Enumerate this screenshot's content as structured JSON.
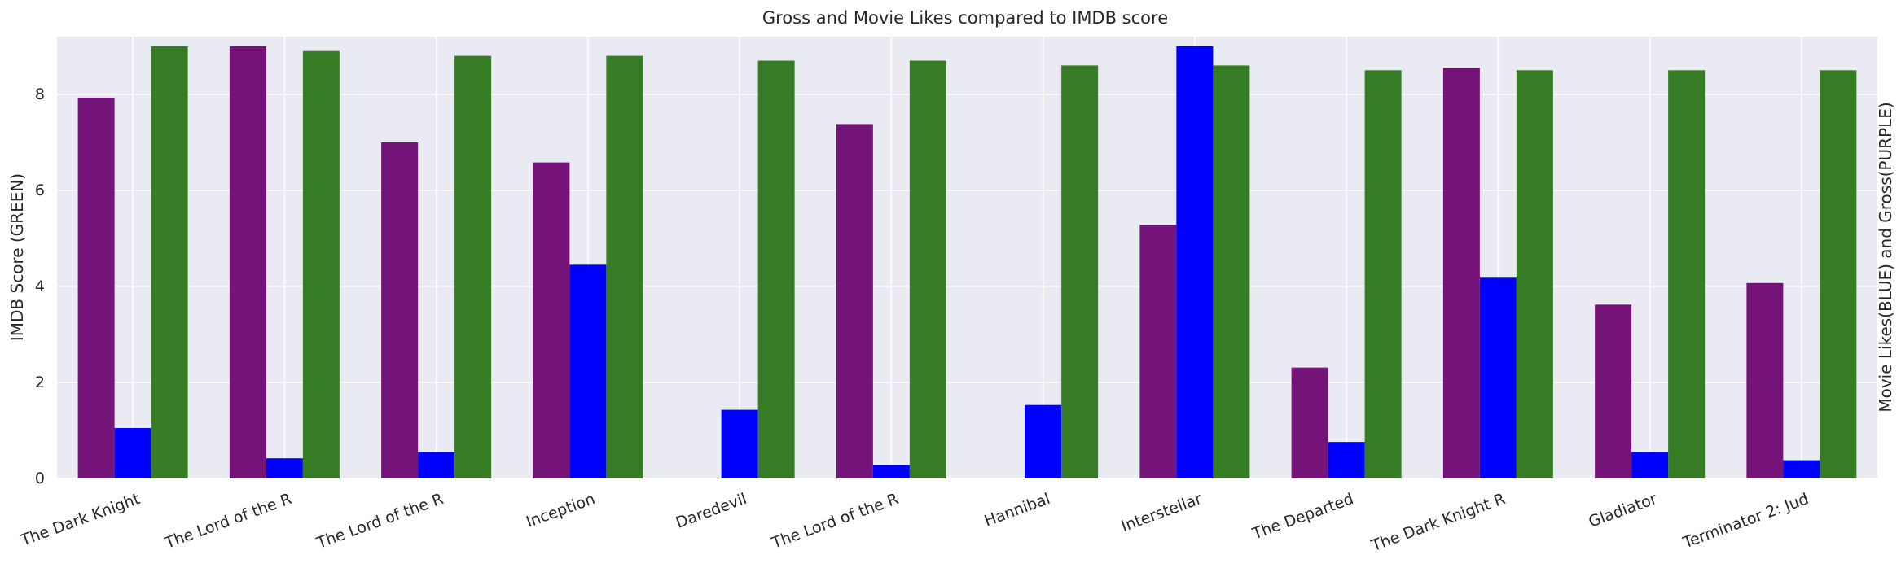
{
  "chart_data": {
    "type": "bar",
    "title": "Gross and Movie Likes compared to IMDB score",
    "ylabel": "IMDB Score (GREEN)",
    "ylabel_right": "Movie Likes(BLUE) and Gross(PURPLE)",
    "ylim": [
      0,
      9.2
    ],
    "yticks": [
      0,
      2,
      4,
      6,
      8
    ],
    "grid": true,
    "categories": [
      "The Dark Knight",
      "The Lord of the R",
      "The Lord of the R",
      "Inception",
      "Daredevil",
      "The Lord of the R",
      "Hannibal",
      "Interstellar",
      "The Departed",
      "The Dark Knight R",
      "Gladiator",
      "Terminator 2: Jud"
    ],
    "series": [
      {
        "color": "#751478",
        "values": [
          7.93,
          9.0,
          7.0,
          6.58,
          0,
          7.38,
          0,
          5.28,
          2.31,
          8.55,
          3.62,
          4.07
        ]
      },
      {
        "color": "#0000ff",
        "values": [
          1.05,
          0.42,
          0.55,
          4.45,
          1.43,
          0.28,
          1.53,
          9.0,
          0.76,
          4.18,
          0.55,
          0.38
        ]
      },
      {
        "color": "#367c24",
        "values": [
          9.0,
          8.9,
          8.8,
          8.8,
          8.7,
          8.7,
          8.6,
          8.6,
          8.5,
          8.5,
          8.5,
          8.5
        ]
      }
    ]
  }
}
